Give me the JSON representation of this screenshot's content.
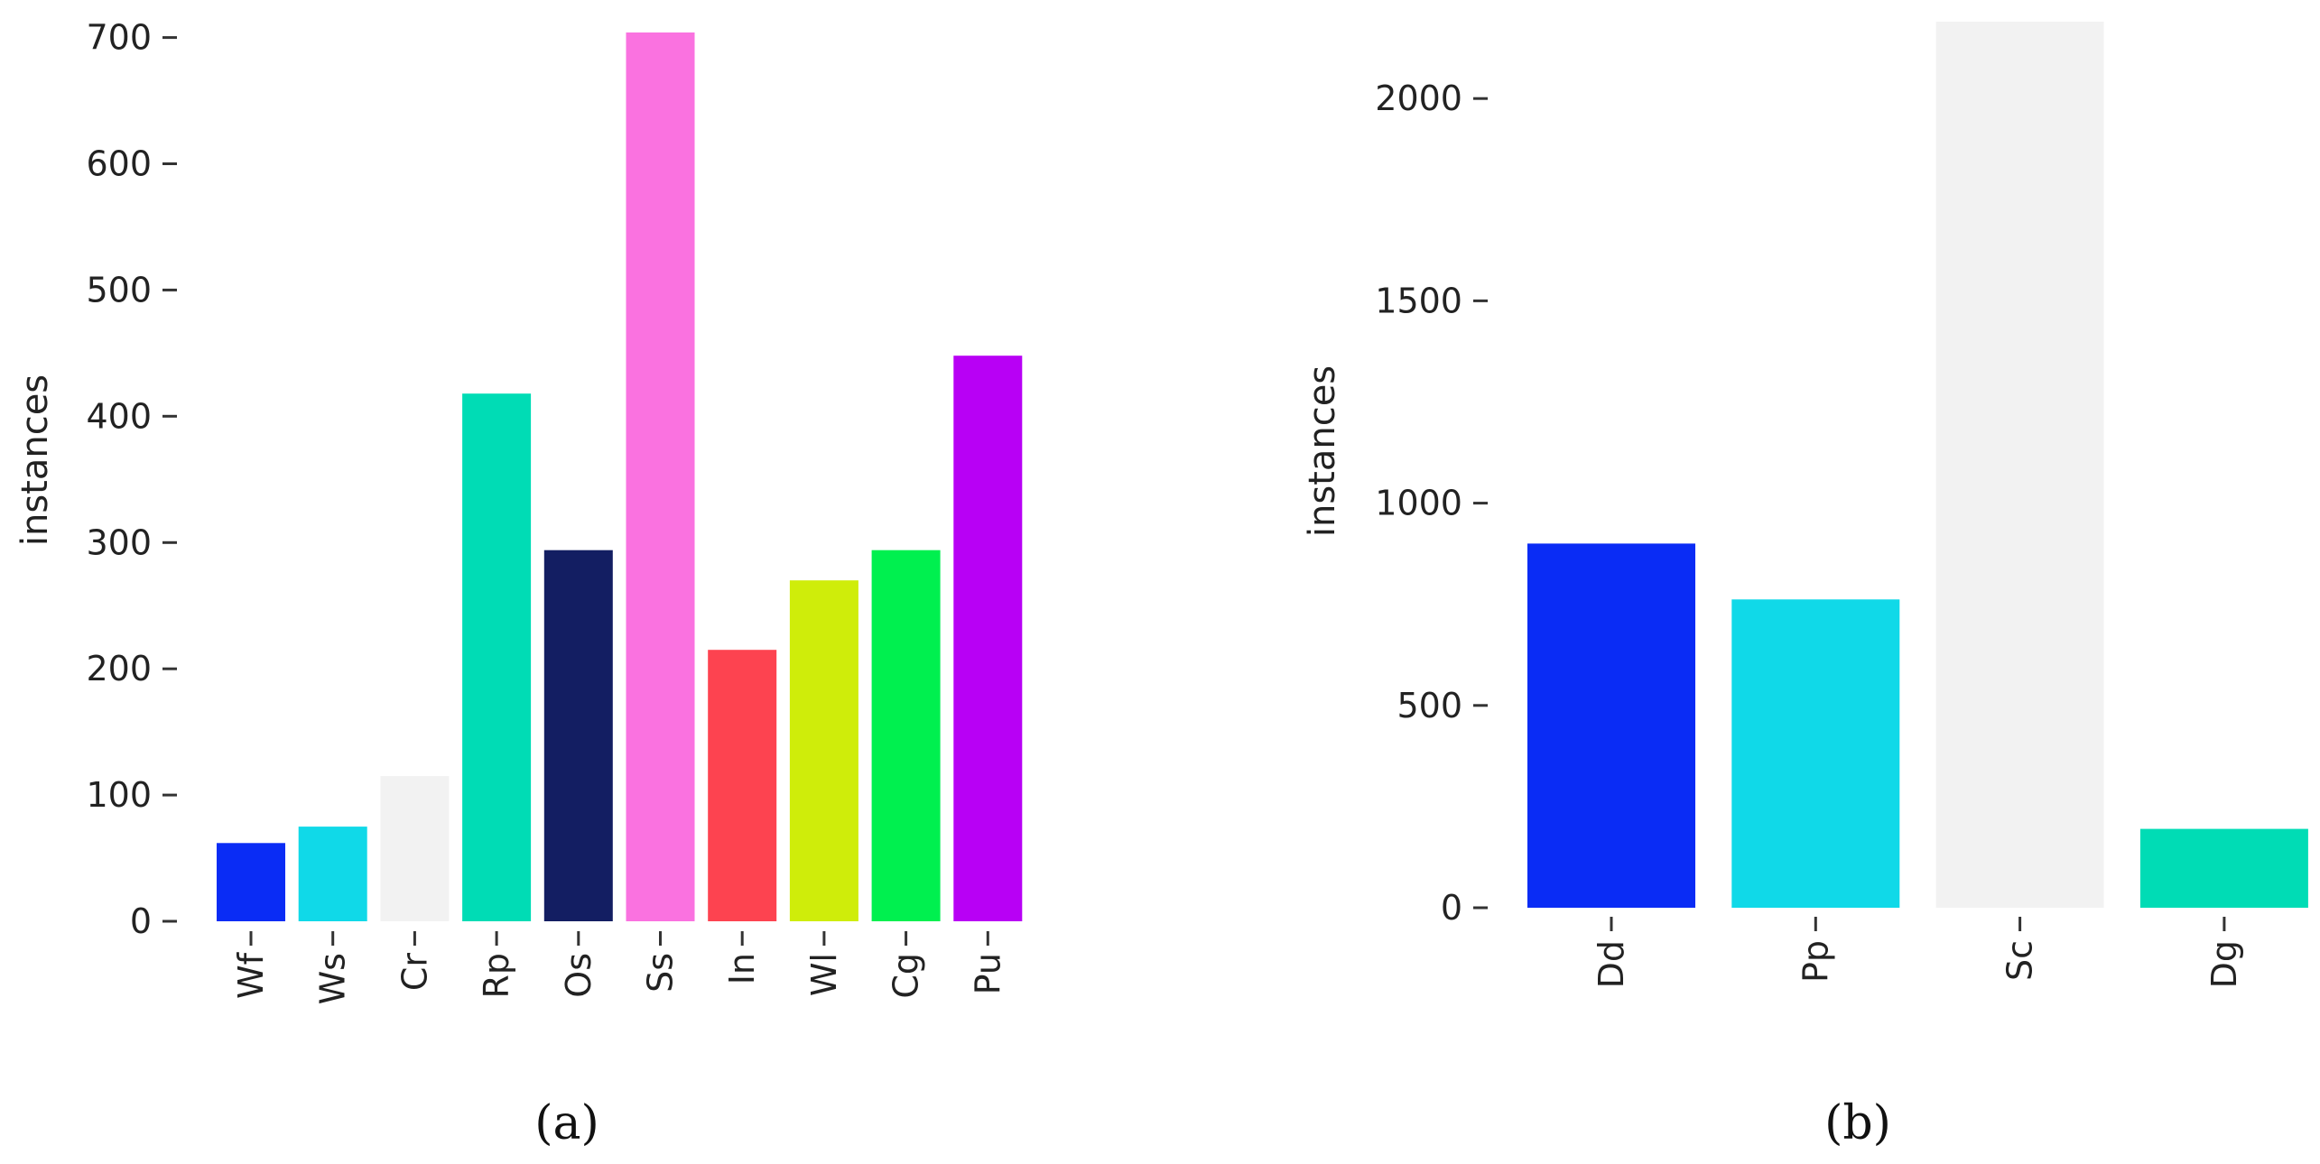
{
  "chart_data": [
    {
      "type": "bar",
      "caption": "(a)",
      "ylabel": "instances",
      "categories": [
        "Wf",
        "Ws",
        "Cr",
        "Rp",
        "Os",
        "Ss",
        "In",
        "Wl",
        "Cg",
        "Pu"
      ],
      "values": [
        62,
        75,
        115,
        418,
        294,
        704,
        215,
        270,
        294,
        448
      ],
      "colors": [
        "#0a2cf5",
        "#10d9e8",
        "#f2f2f2",
        "#00dcb5",
        "#131e62",
        "#fa72e0",
        "#fd4350",
        "#cfed0a",
        "#00f04f",
        "#b800f5"
      ],
      "yticks": [
        0,
        100,
        200,
        300,
        400,
        500,
        600,
        700
      ],
      "ylim": [
        0,
        704
      ],
      "grid": false
    },
    {
      "type": "bar",
      "caption": "(b)",
      "ylabel": "instances",
      "categories": [
        "Dd",
        "Pp",
        "Sc",
        "Dg"
      ],
      "values": [
        900,
        762,
        2190,
        195
      ],
      "colors": [
        "#0a2cf5",
        "#10d9e8",
        "#f2f2f2",
        "#00dcb5"
      ],
      "yticks": [
        0,
        500,
        1000,
        1500,
        2000
      ],
      "ylim": [
        0,
        2190
      ],
      "grid": false
    }
  ]
}
